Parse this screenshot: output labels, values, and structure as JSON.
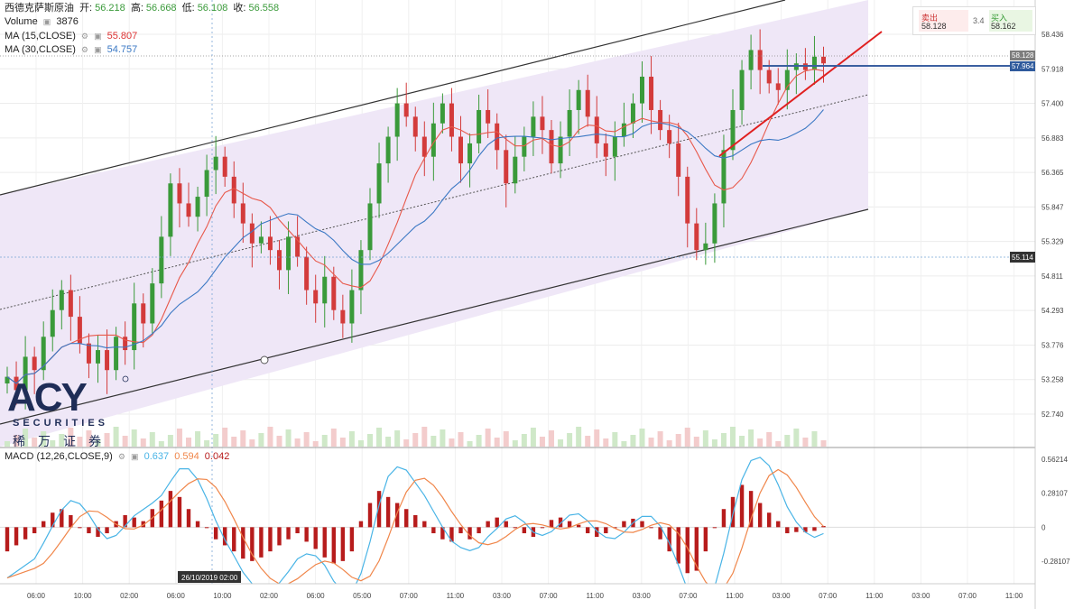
{
  "header": {
    "symbol": "西德克萨斯原油",
    "open_label": "开:",
    "open_value": "56.218",
    "high_label": "高:",
    "high_value": "56.668",
    "low_label": "低:",
    "low_value": "56.108",
    "close_label": "收:",
    "close_value": "56.558",
    "volume_label": "Volume",
    "volume_value": "3876",
    "ma15_label": "MA (15,CLOSE)",
    "ma15_value": "55.807",
    "ma30_label": "MA (30,CLOSE)",
    "ma30_value": "54.757"
  },
  "quote": {
    "sell_label": "卖出",
    "sell_value": "58.128",
    "spread": "3.4",
    "buy_label": "买入",
    "buy_value": "58.162"
  },
  "macd_legend": {
    "label": "MACD (12,26,CLOSE,9)",
    "macd": "0.637",
    "signal": "0.594",
    "hist": "0.042"
  },
  "crosshair_date": "26/10/2019  02:00",
  "logo": {
    "brand": "ACY",
    "sub": "SECURITIES",
    "cn": "稀万证券"
  },
  "colors": {
    "up": "#3a9a3a",
    "down": "#d33b3b",
    "ma15": "#e8584a",
    "ma30": "#3b78c4",
    "channel_fill": "#efe7f7",
    "macd_line": "#49b4e6",
    "signal_line": "#f0864a",
    "hist": "#b71c1c"
  },
  "chart_data": [
    {
      "type": "candlestick",
      "title": "西德克萨斯原油",
      "ylim": [
        52.74,
        58.436
      ],
      "y_ticks": [
        "58.436",
        "57.918",
        "57.400",
        "56.883",
        "56.365",
        "55.847",
        "55.329",
        "54.811",
        "54.293",
        "53.776",
        "53.258",
        "52.740"
      ],
      "x_ticks": [
        "06:00",
        "10:00",
        "02:00",
        "06:00",
        "10:00",
        "02:00",
        "06:00",
        "05:00",
        "07:00",
        "11:00",
        "03:00",
        "07:00",
        "11:00",
        "03:00",
        "07:00",
        "11:00",
        "03:00",
        "07:00",
        "11:00",
        "03:00",
        "07:00",
        "11:00"
      ],
      "price_tags": [
        "58.128",
        "57.964",
        "55.114"
      ],
      "series": [
        {
          "name": "MA (15,CLOSE)",
          "last": 55.807
        },
        {
          "name": "MA (30,CLOSE)",
          "last": 54.757
        }
      ],
      "close_path": [
        53.3,
        53.1,
        53.6,
        53.4,
        53.9,
        54.3,
        54.6,
        54.2,
        53.8,
        53.5,
        53.7,
        53.4,
        53.9,
        53.7,
        54.4,
        54.1,
        54.7,
        55.4,
        56.2,
        55.9,
        55.7,
        56.0,
        56.4,
        56.6,
        56.3,
        55.9,
        55.6,
        55.3,
        55.4,
        55.2,
        54.9,
        55.4,
        55.1,
        54.6,
        54.4,
        54.8,
        54.3,
        54.1,
        54.6,
        55.2,
        55.9,
        56.5,
        56.9,
        57.4,
        57.2,
        56.9,
        56.6,
        57.1,
        57.4,
        56.9,
        56.5,
        56.8,
        57.3,
        57.1,
        56.7,
        56.2,
        56.6,
        56.9,
        57.2,
        57.0,
        56.5,
        56.9,
        57.3,
        57.6,
        57.2,
        56.8,
        56.6,
        56.9,
        57.1,
        57.4,
        57.8,
        57.3,
        57.0,
        56.8,
        56.3,
        55.6,
        55.2,
        55.3,
        55.9,
        56.7,
        57.3,
        57.9,
        58.2,
        57.9,
        57.7,
        57.6,
        57.9,
        58.0,
        57.9,
        58.1,
        58.0
      ]
    },
    {
      "type": "macd",
      "title": "MACD (12,26,CLOSE,9)",
      "ylim": [
        -0.42,
        0.6
      ],
      "y_ticks": [
        "0.56214",
        "0.28107",
        "0",
        "-0.28107"
      ],
      "series": [
        {
          "name": "MACD",
          "last": 0.637
        },
        {
          "name": "Signal",
          "last": 0.594
        },
        {
          "name": "Histogram",
          "last": 0.042
        }
      ],
      "hist_path": [
        -0.2,
        -0.15,
        -0.1,
        -0.05,
        0.05,
        0.12,
        0.15,
        0.1,
        0.0,
        -0.05,
        -0.08,
        -0.05,
        0.05,
        0.1,
        0.08,
        0.05,
        0.15,
        0.22,
        0.3,
        0.25,
        0.15,
        0.05,
        0.0,
        -0.1,
        -0.15,
        -0.2,
        -0.26,
        -0.28,
        -0.25,
        -0.2,
        -0.15,
        -0.1,
        -0.05,
        -0.12,
        -0.18,
        -0.25,
        -0.3,
        -0.28,
        -0.2,
        0.05,
        0.2,
        0.3,
        0.25,
        0.2,
        0.15,
        0.1,
        0.05,
        -0.05,
        -0.1,
        -0.12,
        -0.05,
        -0.1,
        -0.05,
        0.05,
        0.08,
        0.05,
        0.0,
        -0.05,
        -0.08,
        0.0,
        0.06,
        0.08,
        0.05,
        0.02,
        -0.05,
        -0.08,
        -0.05,
        0.0,
        0.05,
        0.07,
        0.05,
        0.0,
        -0.1,
        -0.2,
        -0.3,
        -0.38,
        -0.36,
        -0.2,
        0.0,
        0.15,
        0.25,
        0.35,
        0.3,
        0.2,
        0.12,
        0.05,
        -0.05,
        -0.04,
        -0.04,
        -0.03,
        0.01
      ]
    }
  ]
}
